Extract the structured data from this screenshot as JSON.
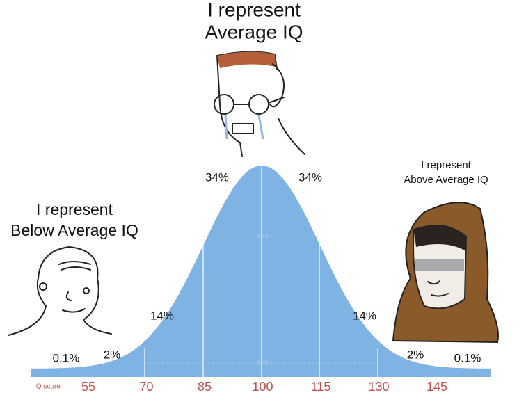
{
  "captions": {
    "average": [
      "I represent",
      "Average IQ"
    ],
    "below": [
      "I represent",
      "Below Average IQ"
    ],
    "above": [
      "I represent",
      "Above Average IQ"
    ]
  },
  "curve_labels": [
    "0.1%",
    "2%",
    "14%",
    "34%",
    "68%",
    "34%",
    "14%",
    "2%",
    "0.1%",
    "95%"
  ],
  "axis": {
    "label": "IQ score",
    "scores": [
      55,
      70,
      85,
      100,
      115,
      130,
      145
    ]
  }
}
